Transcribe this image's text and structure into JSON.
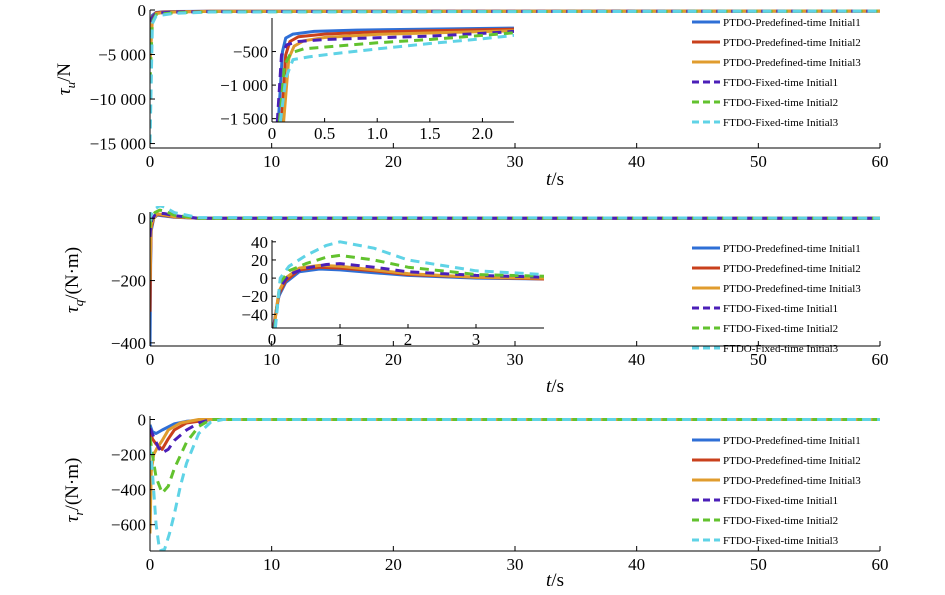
{
  "chart_data": [
    {
      "type": "line",
      "ylabel": {
        "sym": "τ",
        "sub": "u",
        "unit": "/N"
      },
      "xlabel": {
        "sym": "t",
        "unit": "/s"
      },
      "xlim": [
        0,
        60
      ],
      "ylim": [
        -15500,
        0
      ],
      "xticks": [
        {
          "v": 0,
          "label": "0"
        },
        {
          "v": 10,
          "label": "10"
        },
        {
          "v": 20,
          "label": "20"
        },
        {
          "v": 30,
          "label": "30"
        },
        {
          "v": 40,
          "label": "40"
        },
        {
          "v": 50,
          "label": "50"
        },
        {
          "v": 60,
          "label": "60"
        }
      ],
      "yticks": [
        {
          "v": 0,
          "label": "0"
        },
        {
          "v": -5000,
          "label": "−5 000"
        },
        {
          "v": -10000,
          "label": "−10 000"
        },
        {
          "v": -15000,
          "label": "−15 000"
        }
      ],
      "legend": {
        "position": "top-right"
      },
      "series": [
        {
          "name": "PTDO-Predefined-time Initial1",
          "color": "#2f6fd6",
          "dash": false,
          "x": [
            0,
            0.2,
            0.5,
            1,
            2,
            5,
            60
          ],
          "y": [
            -2500,
            -600,
            -280,
            -210,
            -170,
            -140,
            -120
          ]
        },
        {
          "name": "PTDO-Predefined-time Initial2",
          "color": "#c9401c",
          "dash": false,
          "x": [
            0,
            0.2,
            0.5,
            1,
            2,
            5,
            60
          ],
          "y": [
            -4000,
            -800,
            -330,
            -240,
            -190,
            -150,
            -120
          ]
        },
        {
          "name": "PTDO-Predefined-time Initial3",
          "color": "#e09c2e",
          "dash": false,
          "x": [
            0,
            0.2,
            0.5,
            1,
            2,
            5,
            60
          ],
          "y": [
            -6000,
            -1000,
            -400,
            -290,
            -220,
            -160,
            -120
          ]
        },
        {
          "name": "FTDO-Fixed-time Initial1",
          "color": "#4b1fb8",
          "dash": true,
          "x": [
            0,
            0.2,
            0.5,
            1,
            2,
            5,
            60
          ],
          "y": [
            -3000,
            -900,
            -380,
            -320,
            -250,
            -180,
            -120
          ]
        },
        {
          "name": "FTDO-Fixed-time Initial2",
          "color": "#62c22e",
          "dash": true,
          "x": [
            0,
            0.2,
            0.5,
            1,
            2,
            5,
            60
          ],
          "y": [
            -8000,
            -1300,
            -520,
            -440,
            -320,
            -200,
            -120
          ]
        },
        {
          "name": "FTDO-Fixed-time Initial3",
          "color": "#5fd3e6",
          "dash": true,
          "x": [
            0,
            0.2,
            0.5,
            1,
            2,
            5,
            60
          ],
          "y": [
            -15000,
            -1500,
            -660,
            -560,
            -380,
            -230,
            -120
          ]
        }
      ],
      "inset": {
        "xlim": [
          0,
          2.3
        ],
        "ylim": [
          -1550,
          0
        ],
        "xticks": [
          {
            "v": 0,
            "label": "0"
          },
          {
            "v": 0.5,
            "label": "0.5"
          },
          {
            "v": 1.0,
            "label": "1.0"
          },
          {
            "v": 1.5,
            "label": "1.5"
          },
          {
            "v": 2.0,
            "label": "2.0"
          }
        ],
        "yticks": [
          {
            "v": -500,
            "label": "−500"
          },
          {
            "v": -1000,
            "label": "−1 000"
          },
          {
            "v": -1500,
            "label": "−1 500"
          }
        ],
        "series": [
          {
            "x": [
              0.06,
              0.1,
              0.13,
              0.2,
              0.4,
              0.8,
              1.5,
              2.3
            ],
            "y": [
              -1550,
              -500,
              -300,
              -240,
              -200,
              -180,
              -165,
              -150
            ]
          },
          {
            "x": [
              0.09,
              0.13,
              0.17,
              0.25,
              0.5,
              1.0,
              1.8,
              2.3
            ],
            "y": [
              -1550,
              -550,
              -350,
              -280,
              -240,
              -205,
              -180,
              -165
            ]
          },
          {
            "x": [
              0.11,
              0.16,
              0.21,
              0.3,
              0.5,
              1.0,
              1.8,
              2.3
            ],
            "y": [
              -1550,
              -600,
              -420,
              -340,
              -290,
              -245,
              -210,
              -190
            ]
          },
          {
            "x": [
              0.05,
              0.09,
              0.14,
              0.25,
              0.5,
              1.0,
              1.5,
              2.0,
              2.3
            ],
            "y": [
              -1550,
              -550,
              -400,
              -350,
              -320,
              -295,
              -270,
              -230,
              -200
            ]
          },
          {
            "x": [
              0.07,
              0.12,
              0.18,
              0.3,
              0.6,
              1.0,
              1.5,
              2.0,
              2.3
            ],
            "y": [
              -1550,
              -700,
              -520,
              -460,
              -420,
              -370,
              -320,
              -260,
              -220
            ]
          },
          {
            "x": [
              0.08,
              0.13,
              0.2,
              0.35,
              0.6,
              1.0,
              1.5,
              2.0,
              2.3
            ],
            "y": [
              -1550,
              -900,
              -620,
              -580,
              -530,
              -460,
              -380,
              -310,
              -260
            ]
          }
        ]
      }
    },
    {
      "type": "line",
      "ylabel": {
        "sym": "τ",
        "sub": "q",
        "unit": "/(N·m)"
      },
      "xlabel": {
        "sym": "t",
        "unit": "/s"
      },
      "xlim": [
        0,
        60
      ],
      "ylim": [
        -410,
        20
      ],
      "xticks": [
        {
          "v": 0,
          "label": "0"
        },
        {
          "v": 10,
          "label": "10"
        },
        {
          "v": 20,
          "label": "20"
        },
        {
          "v": 30,
          "label": "30"
        },
        {
          "v": 40,
          "label": "40"
        },
        {
          "v": 50,
          "label": "50"
        },
        {
          "v": 60,
          "label": "60"
        }
      ],
      "yticks": [
        {
          "v": 0,
          "label": "0"
        },
        {
          "v": -200,
          "label": "−200"
        },
        {
          "v": -400,
          "label": "−400"
        }
      ],
      "legend": {
        "position": "top-right"
      },
      "series": [
        {
          "name": "PTDO-Predefined-time Initial1",
          "color": "#2f6fd6",
          "dash": false,
          "x": [
            0,
            0.05,
            0.1,
            0.3,
            0.6,
            1,
            2,
            4,
            60
          ],
          "y": [
            -410,
            -150,
            -40,
            0,
            10,
            8,
            3,
            0,
            0
          ]
        },
        {
          "name": "PTDO-Predefined-time Initial2",
          "color": "#c9401c",
          "dash": false,
          "x": [
            0,
            0.05,
            0.1,
            0.3,
            0.6,
            1,
            2,
            4,
            60
          ],
          "y": [
            -300,
            -120,
            -30,
            0,
            12,
            10,
            4,
            0,
            0
          ]
        },
        {
          "name": "PTDO-Predefined-time Initial3",
          "color": "#e09c2e",
          "dash": false,
          "x": [
            0,
            0.05,
            0.1,
            0.3,
            0.6,
            1,
            2,
            4,
            60
          ],
          "y": [
            -200,
            -80,
            -20,
            0,
            14,
            12,
            5,
            0,
            0
          ]
        },
        {
          "name": "FTDO-Fixed-time Initial1",
          "color": "#4b1fb8",
          "dash": true,
          "x": [
            0,
            0.05,
            0.15,
            0.4,
            0.8,
            1.2,
            2,
            4,
            60
          ],
          "y": [
            -60,
            -30,
            -5,
            10,
            16,
            15,
            8,
            0,
            0
          ]
        },
        {
          "name": "FTDO-Fixed-time Initial2",
          "color": "#62c22e",
          "dash": true,
          "x": [
            0,
            0.05,
            0.15,
            0.4,
            0.8,
            1.2,
            2,
            4,
            60
          ],
          "y": [
            -30,
            -10,
            5,
            18,
            26,
            23,
            10,
            0,
            0
          ]
        },
        {
          "name": "FTDO-Fixed-time Initial3",
          "color": "#5fd3e6",
          "dash": true,
          "x": [
            0,
            0.05,
            0.15,
            0.4,
            0.8,
            1.2,
            2,
            4,
            60
          ],
          "y": [
            -10,
            5,
            15,
            30,
            40,
            36,
            18,
            2,
            0
          ]
        }
      ],
      "inset": {
        "xlim": [
          0,
          4
        ],
        "ylim": [
          -55,
          42
        ],
        "xticks": [
          {
            "v": 0,
            "label": "0"
          },
          {
            "v": 1,
            "label": "1"
          },
          {
            "v": 2,
            "label": "2"
          },
          {
            "v": 3,
            "label": "3"
          }
        ],
        "yticks": [
          {
            "v": 40,
            "label": "40"
          },
          {
            "v": 20,
            "label": "20"
          },
          {
            "v": 0,
            "label": "0"
          },
          {
            "v": -20,
            "label": "−20"
          },
          {
            "v": -40,
            "label": "−40"
          }
        ],
        "series": [
          {
            "x": [
              0.02,
              0.1,
              0.2,
              0.4,
              0.7,
              1.0,
              1.5,
              2.0,
              3.0,
              4.0
            ],
            "y": [
              -55,
              -20,
              -5,
              7,
              10,
              9,
              6,
              3,
              0,
              -1
            ]
          },
          {
            "x": [
              0.02,
              0.1,
              0.2,
              0.4,
              0.7,
              1.0,
              1.5,
              2.0,
              3.0,
              4.0
            ],
            "y": [
              -55,
              -18,
              -3,
              9,
              12,
              11,
              8,
              4,
              1,
              -1
            ]
          },
          {
            "x": [
              0.03,
              0.1,
              0.2,
              0.4,
              0.7,
              1.0,
              1.5,
              2.0,
              3.0,
              4.0
            ],
            "y": [
              -55,
              -15,
              0,
              11,
              14,
              13,
              9,
              5,
              1,
              0
            ]
          },
          {
            "x": [
              0.03,
              0.12,
              0.25,
              0.5,
              0.8,
              1.0,
              1.5,
              2.0,
              3.0,
              4.0
            ],
            "y": [
              -55,
              -10,
              4,
              11,
              15,
              16,
              12,
              7,
              3,
              1
            ]
          },
          {
            "x": [
              0.04,
              0.12,
              0.25,
              0.5,
              0.8,
              1.0,
              1.5,
              2.0,
              3.0,
              4.0
            ],
            "y": [
              -55,
              -5,
              8,
              16,
              23,
              25,
              20,
              12,
              4,
              2
            ]
          },
          {
            "x": [
              0.05,
              0.12,
              0.25,
              0.5,
              0.8,
              1.0,
              1.5,
              2.0,
              3.0,
              4.0
            ],
            "y": [
              -55,
              0,
              13,
              25,
              36,
              40,
              33,
              20,
              8,
              4
            ]
          }
        ]
      }
    },
    {
      "type": "line",
      "ylabel": {
        "sym": "τ",
        "sub": "r",
        "unit": "/(N·m)"
      },
      "xlabel": {
        "sym": "t",
        "unit": "/s"
      },
      "xlim": [
        0,
        60
      ],
      "ylim": [
        -750,
        20
      ],
      "xticks": [
        {
          "v": 0,
          "label": "0"
        },
        {
          "v": 10,
          "label": "10"
        },
        {
          "v": 20,
          "label": "20"
        },
        {
          "v": 30,
          "label": "30"
        },
        {
          "v": 40,
          "label": "40"
        },
        {
          "v": 50,
          "label": "50"
        },
        {
          "v": 60,
          "label": "60"
        }
      ],
      "yticks": [
        {
          "v": 0,
          "label": "0"
        },
        {
          "v": -200,
          "label": "−200"
        },
        {
          "v": -400,
          "label": "−400"
        },
        {
          "v": -600,
          "label": "−600"
        }
      ],
      "legend": {
        "position": "top-right"
      },
      "series": [
        {
          "name": "PTDO-Predefined-time Initial1",
          "color": "#2f6fd6",
          "dash": false,
          "x": [
            0,
            0.2,
            0.5,
            1,
            2,
            3,
            5,
            60
          ],
          "y": [
            -30,
            -70,
            -80,
            -60,
            -25,
            -10,
            0,
            0
          ]
        },
        {
          "name": "PTDO-Predefined-time Initial2",
          "color": "#c9401c",
          "dash": false,
          "x": [
            0,
            0.2,
            0.5,
            1,
            1.5,
            2,
            3,
            5,
            60
          ],
          "y": [
            -50,
            -110,
            -140,
            -170,
            -110,
            -60,
            -20,
            0,
            0
          ]
        },
        {
          "name": "PTDO-Predefined-time Initial3",
          "color": "#e09c2e",
          "dash": false,
          "x": [
            0,
            0.1,
            0.3,
            0.6,
            1,
            1.5,
            2.5,
            4,
            60
          ],
          "y": [
            -650,
            -300,
            -200,
            -160,
            -120,
            -60,
            -20,
            0,
            0
          ]
        },
        {
          "name": "FTDO-Fixed-time Initial1",
          "color": "#4b1fb8",
          "dash": true,
          "x": [
            0,
            0.3,
            0.7,
            1.0,
            1.5,
            2,
            3,
            4,
            5,
            60
          ],
          "y": [
            -50,
            -100,
            -160,
            -190,
            -170,
            -120,
            -60,
            -20,
            0,
            0
          ]
        },
        {
          "name": "FTDO-Fixed-time Initial2",
          "color": "#62c22e",
          "dash": true,
          "x": [
            0,
            0.2,
            0.5,
            1.0,
            1.5,
            2.0,
            3.0,
            4.0,
            5.0,
            60
          ],
          "y": [
            -100,
            -200,
            -330,
            -420,
            -380,
            -280,
            -130,
            -40,
            0,
            0
          ]
        },
        {
          "name": "FTDO-Fixed-time Initial3",
          "color": "#5fd3e6",
          "dash": true,
          "x": [
            0,
            0.2,
            0.5,
            0.8,
            1.2,
            1.6,
            2.0,
            2.5,
            3.0,
            4.0,
            5.0,
            6.0,
            60
          ],
          "y": [
            -150,
            -300,
            -600,
            -750,
            -740,
            -650,
            -540,
            -380,
            -250,
            -80,
            -15,
            0,
            0
          ]
        }
      ]
    }
  ]
}
